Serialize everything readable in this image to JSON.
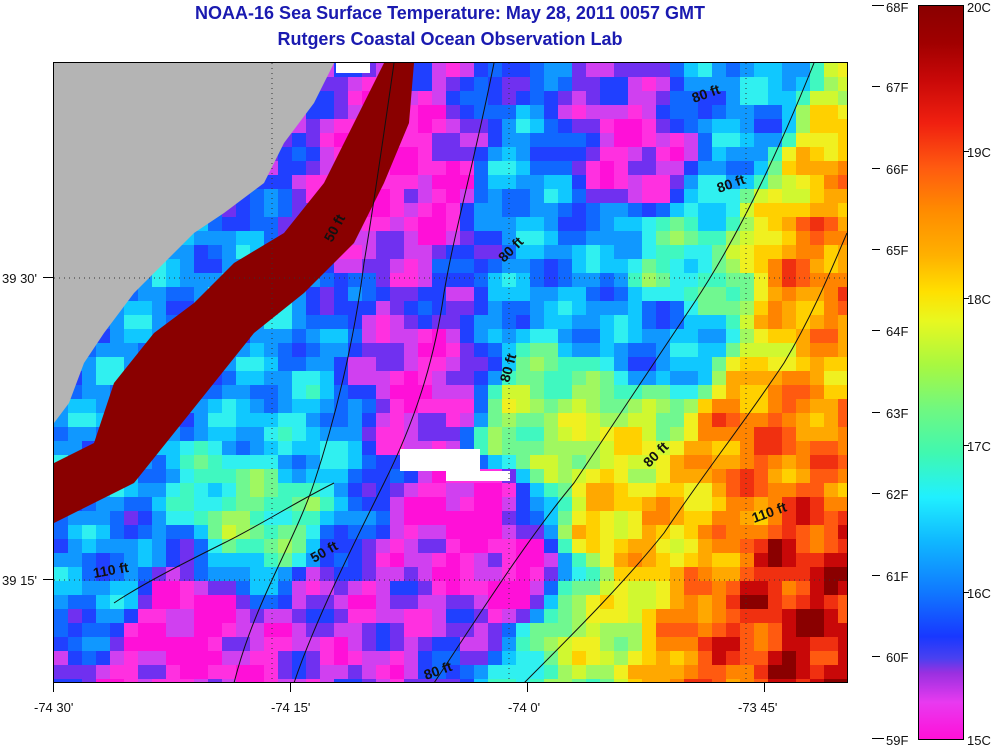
{
  "header": {
    "title": "NOAA-16 Sea Surface Temperature:  May 28, 2011 0057 GMT",
    "subtitle": "Rutgers Coastal Ocean Observation Lab"
  },
  "map": {
    "x_ticks": [
      "-74 30'",
      "-74 15'",
      "-74 0'",
      "-73 45'"
    ],
    "y_ticks": [
      "39 30'",
      "39 15'"
    ],
    "land_color": "#b4b4b4",
    "contour_labels": [
      "50 ft",
      "80 ft",
      "80 ft",
      "80 ft",
      "80 ft",
      "110 ft",
      "110 ft",
      "50 ft",
      "80 ft",
      "80 ft"
    ]
  },
  "colorbar": {
    "fahrenheit": [
      "68F",
      "67F",
      "66F",
      "65F",
      "64F",
      "63F",
      "62F",
      "61F",
      "60F",
      "59F"
    ],
    "celsius": [
      "20C",
      "19C",
      "18C",
      "17C",
      "16C",
      "15C"
    ],
    "min_color": "#ff10d8",
    "max_color": "#8a0000"
  }
}
